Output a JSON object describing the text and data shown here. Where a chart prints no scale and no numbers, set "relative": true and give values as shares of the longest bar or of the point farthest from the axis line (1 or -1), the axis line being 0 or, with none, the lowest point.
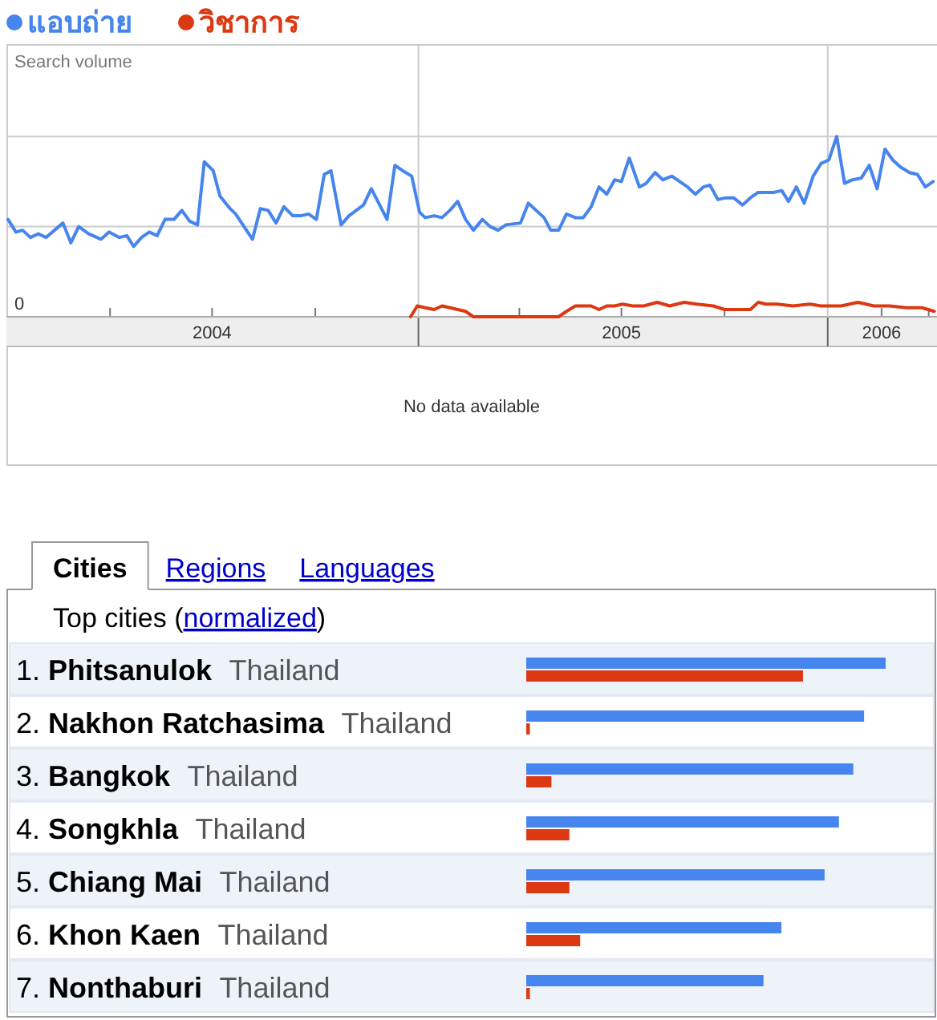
{
  "chart_data": [
    {
      "type": "line",
      "relative": true,
      "ylabel": "Search volume",
      "legend": "top left",
      "xlim": [
        "2004-01-01",
        "2006-04-07"
      ],
      "xticks": [
        {
          "value": "2004-04-01",
          "label": null
        },
        {
          "value": "2004-07-01",
          "label": "2004"
        },
        {
          "value": "2004-10-01",
          "label": null
        },
        {
          "value": "2005-04-01",
          "label": null
        },
        {
          "value": "2005-07-01",
          "label": "2005"
        },
        {
          "value": "2005-10-01",
          "label": null
        },
        {
          "value": "2006-02-18",
          "label": "2006"
        },
        {
          "value": "2006-04-01",
          "label": null
        }
      ],
      "ref_lines": [
        {
          "axis": "y",
          "value": 0.5,
          "color": "#cccccc"
        },
        {
          "axis": "y",
          "value": 1,
          "color": "#cccccc"
        },
        {
          "axis": "x",
          "value": "2005-01-01",
          "color": "#cccccc"
        },
        {
          "axis": "x",
          "value": "2006-01-01",
          "color": "#cccccc"
        }
      ],
      "annotations": [
        "0",
        "No data available"
      ],
      "series": [
        {
          "name": "แอบถ่าย",
          "color": "#4684ee",
          "x": [
            "2004-01-01",
            "2004-01-08",
            "2004-01-14",
            "2004-01-21",
            "2004-01-28",
            "2004-02-04",
            "2004-02-19",
            "2004-02-26",
            "2004-03-04",
            "2004-03-13",
            "2004-03-24",
            "2004-03-31",
            "2004-04-09",
            "2004-04-16",
            "2004-04-22",
            "2004-04-29",
            "2004-05-06",
            "2004-05-13",
            "2004-05-20",
            "2004-05-28",
            "2004-06-04",
            "2004-06-11",
            "2004-06-18",
            "2004-06-24",
            "2004-07-02",
            "2004-07-08",
            "2004-07-17",
            "2004-07-22",
            "2004-08-06",
            "2004-08-13",
            "2004-08-20",
            "2004-08-27",
            "2004-09-03",
            "2004-09-11",
            "2004-09-18",
            "2004-09-25",
            "2004-10-02",
            "2004-10-09",
            "2004-10-15",
            "2004-10-24",
            "2004-10-31",
            "2004-11-13",
            "2004-11-20",
            "2004-12-04",
            "2004-12-11",
            "2004-12-18",
            "2004-12-26",
            "2005-01-02",
            "2005-01-07",
            "2005-01-15",
            "2005-01-22",
            "2005-01-29",
            "2005-02-05",
            "2005-02-12",
            "2005-02-19",
            "2005-02-27",
            "2005-03-06",
            "2005-03-13",
            "2005-03-20",
            "2005-04-02",
            "2005-04-09",
            "2005-04-16",
            "2005-04-23",
            "2005-04-29",
            "2005-05-06",
            "2005-05-13",
            "2005-05-21",
            "2005-05-28",
            "2005-06-04",
            "2005-06-11",
            "2005-06-18",
            "2005-06-25",
            "2005-07-01",
            "2005-07-08",
            "2005-07-17",
            "2005-07-23",
            "2005-07-31",
            "2005-08-07",
            "2005-08-15",
            "2005-08-22",
            "2005-08-29",
            "2005-09-05",
            "2005-09-12",
            "2005-09-18",
            "2005-09-25",
            "2005-10-02",
            "2005-10-09",
            "2005-10-17",
            "2005-10-24",
            "2005-10-31",
            "2005-11-07",
            "2005-11-14",
            "2005-11-21",
            "2005-11-27",
            "2005-12-04",
            "2005-12-11",
            "2005-12-19",
            "2005-12-26",
            "2006-01-02",
            "2006-01-09",
            "2006-01-16",
            "2006-01-23",
            "2006-01-31",
            "2006-02-07",
            "2006-02-14",
            "2006-02-21",
            "2006-02-28",
            "2006-03-07",
            "2006-03-15",
            "2006-03-22",
            "2006-03-29",
            "2006-04-05"
          ],
          "values": [
            0.54,
            0.47,
            0.48,
            0.44,
            0.46,
            0.44,
            0.52,
            0.41,
            0.5,
            0.46,
            0.43,
            0.47,
            0.44,
            0.45,
            0.39,
            0.44,
            0.47,
            0.45,
            0.54,
            0.54,
            0.59,
            0.53,
            0.51,
            0.86,
            0.81,
            0.67,
            0.6,
            0.57,
            0.43,
            0.6,
            0.59,
            0.52,
            0.61,
            0.56,
            0.56,
            0.57,
            0.54,
            0.79,
            0.81,
            0.51,
            0.56,
            0.62,
            0.71,
            0.54,
            0.84,
            0.81,
            0.78,
            0.58,
            0.55,
            0.56,
            0.55,
            0.59,
            0.64,
            0.54,
            0.48,
            0.54,
            0.5,
            0.48,
            0.51,
            0.52,
            0.63,
            0.59,
            0.55,
            0.48,
            0.48,
            0.57,
            0.55,
            0.55,
            0.61,
            0.72,
            0.68,
            0.76,
            0.75,
            0.88,
            0.72,
            0.74,
            0.8,
            0.76,
            0.78,
            0.75,
            0.72,
            0.68,
            0.72,
            0.73,
            0.65,
            0.66,
            0.66,
            0.62,
            0.66,
            0.69,
            0.69,
            0.69,
            0.7,
            0.64,
            0.72,
            0.63,
            0.78,
            0.85,
            0.87,
            1,
            0.74,
            0.76,
            0.77,
            0.84,
            0.71,
            0.93,
            0.87,
            0.83,
            0.8,
            0.79,
            0.72,
            0.75
          ]
        },
        {
          "name": "วิชาการ",
          "color": "#dc3912",
          "x": [
            "2004-12-25",
            "2004-12-31",
            "2005-01-07",
            "2005-01-15",
            "2005-01-22",
            "2005-01-29",
            "2005-02-05",
            "2005-02-12",
            "2005-02-19",
            "2005-05-06",
            "2005-05-13",
            "2005-05-21",
            "2005-05-28",
            "2005-06-04",
            "2005-06-11",
            "2005-06-18",
            "2005-06-25",
            "2005-07-02",
            "2005-07-11",
            "2005-07-21",
            "2005-08-02",
            "2005-08-13",
            "2005-08-26",
            "2005-09-06",
            "2005-09-21",
            "2005-10-01",
            "2005-10-24",
            "2005-10-31",
            "2005-11-07",
            "2005-11-17",
            "2005-12-01",
            "2005-12-16",
            "2005-12-26",
            "2006-01-02",
            "2006-01-13",
            "2006-01-28",
            "2006-02-11",
            "2006-02-25",
            "2006-03-12",
            "2006-03-26",
            "2006-04-06"
          ],
          "values": [
            0,
            0.06,
            0.05,
            0.04,
            0.06,
            0.05,
            0.04,
            0.03,
            0,
            0,
            0.03,
            0.06,
            0.06,
            0.06,
            0.04,
            0.06,
            0.06,
            0.07,
            0.06,
            0.06,
            0.08,
            0.06,
            0.08,
            0.07,
            0.06,
            0.04,
            0.04,
            0.08,
            0.07,
            0.07,
            0.06,
            0.07,
            0.06,
            0.06,
            0.06,
            0.08,
            0.06,
            0.06,
            0.05,
            0.05,
            0.03
          ]
        }
      ]
    },
    {
      "type": "bar",
      "orientation": "horizontal",
      "relative": true,
      "title": "Top cities (normalized)",
      "annotations": [
        "Cities",
        "Regions",
        "Languages"
      ],
      "categories": [
        "1. Phitsanulok Thailand",
        "2. Nakhon Ratchasima Thailand",
        "3. Bangkok Thailand",
        "4. Songkhla Thailand",
        "5. Chiang Mai Thailand",
        "6. Khon Kaen Thailand",
        "7. Nonthaburi Thailand"
      ],
      "series": [
        {
          "color": "#4684ee",
          "values": [
            1,
            0.94,
            0.91,
            0.87,
            0.83,
            0.71,
            0.66
          ]
        },
        {
          "color": "#dc3912",
          "values": [
            0.77,
            0.01,
            0.07,
            0.12,
            0.12,
            0.15,
            0.01
          ]
        }
      ]
    }
  ]
}
